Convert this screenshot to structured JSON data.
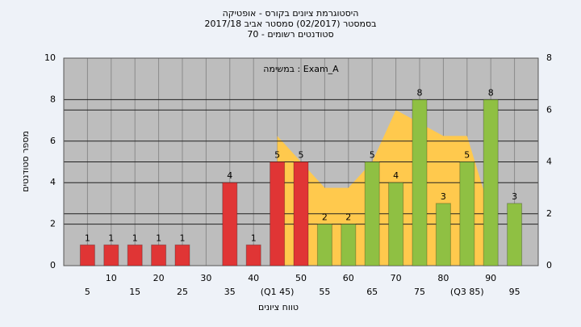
{
  "chart_data": {
    "type": "bar",
    "title_lines": [
      "היסטוגרמת ציונים בקורס - אופטיקה",
      "בסמסטר  (02/2017)  סמסטר אביב 2017/18",
      "סטודנטים רשומים - 70"
    ],
    "annotation": "במשימה : Exam_A",
    "xlabel": "טווח ציונים",
    "ylabel": "מספר סטודנטים",
    "categories": [
      "5",
      "10",
      "15",
      "20",
      "25",
      "30",
      "35",
      "40",
      "(Q1 45)",
      "50",
      "55",
      "60",
      "65",
      "70",
      "75",
      "80",
      "(Q3 85)",
      "90",
      "95"
    ],
    "values": [
      1,
      1,
      1,
      1,
      1,
      0,
      4,
      1,
      5,
      5,
      2,
      2,
      5,
      4,
      8,
      3,
      5,
      8,
      3
    ],
    "colors": [
      "#e03535",
      "#e03535",
      "#e03535",
      "#e03535",
      "#e03535",
      "#e03535",
      "#e03535",
      "#e03535",
      "#e03535",
      "#e03535",
      "#8fc043",
      "#8fc043",
      "#8fc043",
      "#8fc043",
      "#8fc043",
      "#8fc043",
      "#8fc043",
      "#8fc043",
      "#8fc043"
    ],
    "area": {
      "axis": "y2",
      "color": "#ffc94d",
      "values": [
        null,
        null,
        null,
        null,
        null,
        null,
        null,
        null,
        5,
        4,
        3,
        3,
        4,
        6,
        5.5,
        5,
        5,
        2,
        null
      ]
    },
    "ylim": [
      0,
      10
    ],
    "yticks": [
      0,
      2,
      4,
      6,
      8,
      10
    ],
    "y2lim": [
      0,
      8
    ],
    "y2ticks": [
      0,
      2,
      4,
      6,
      8
    ],
    "grid": true
  }
}
